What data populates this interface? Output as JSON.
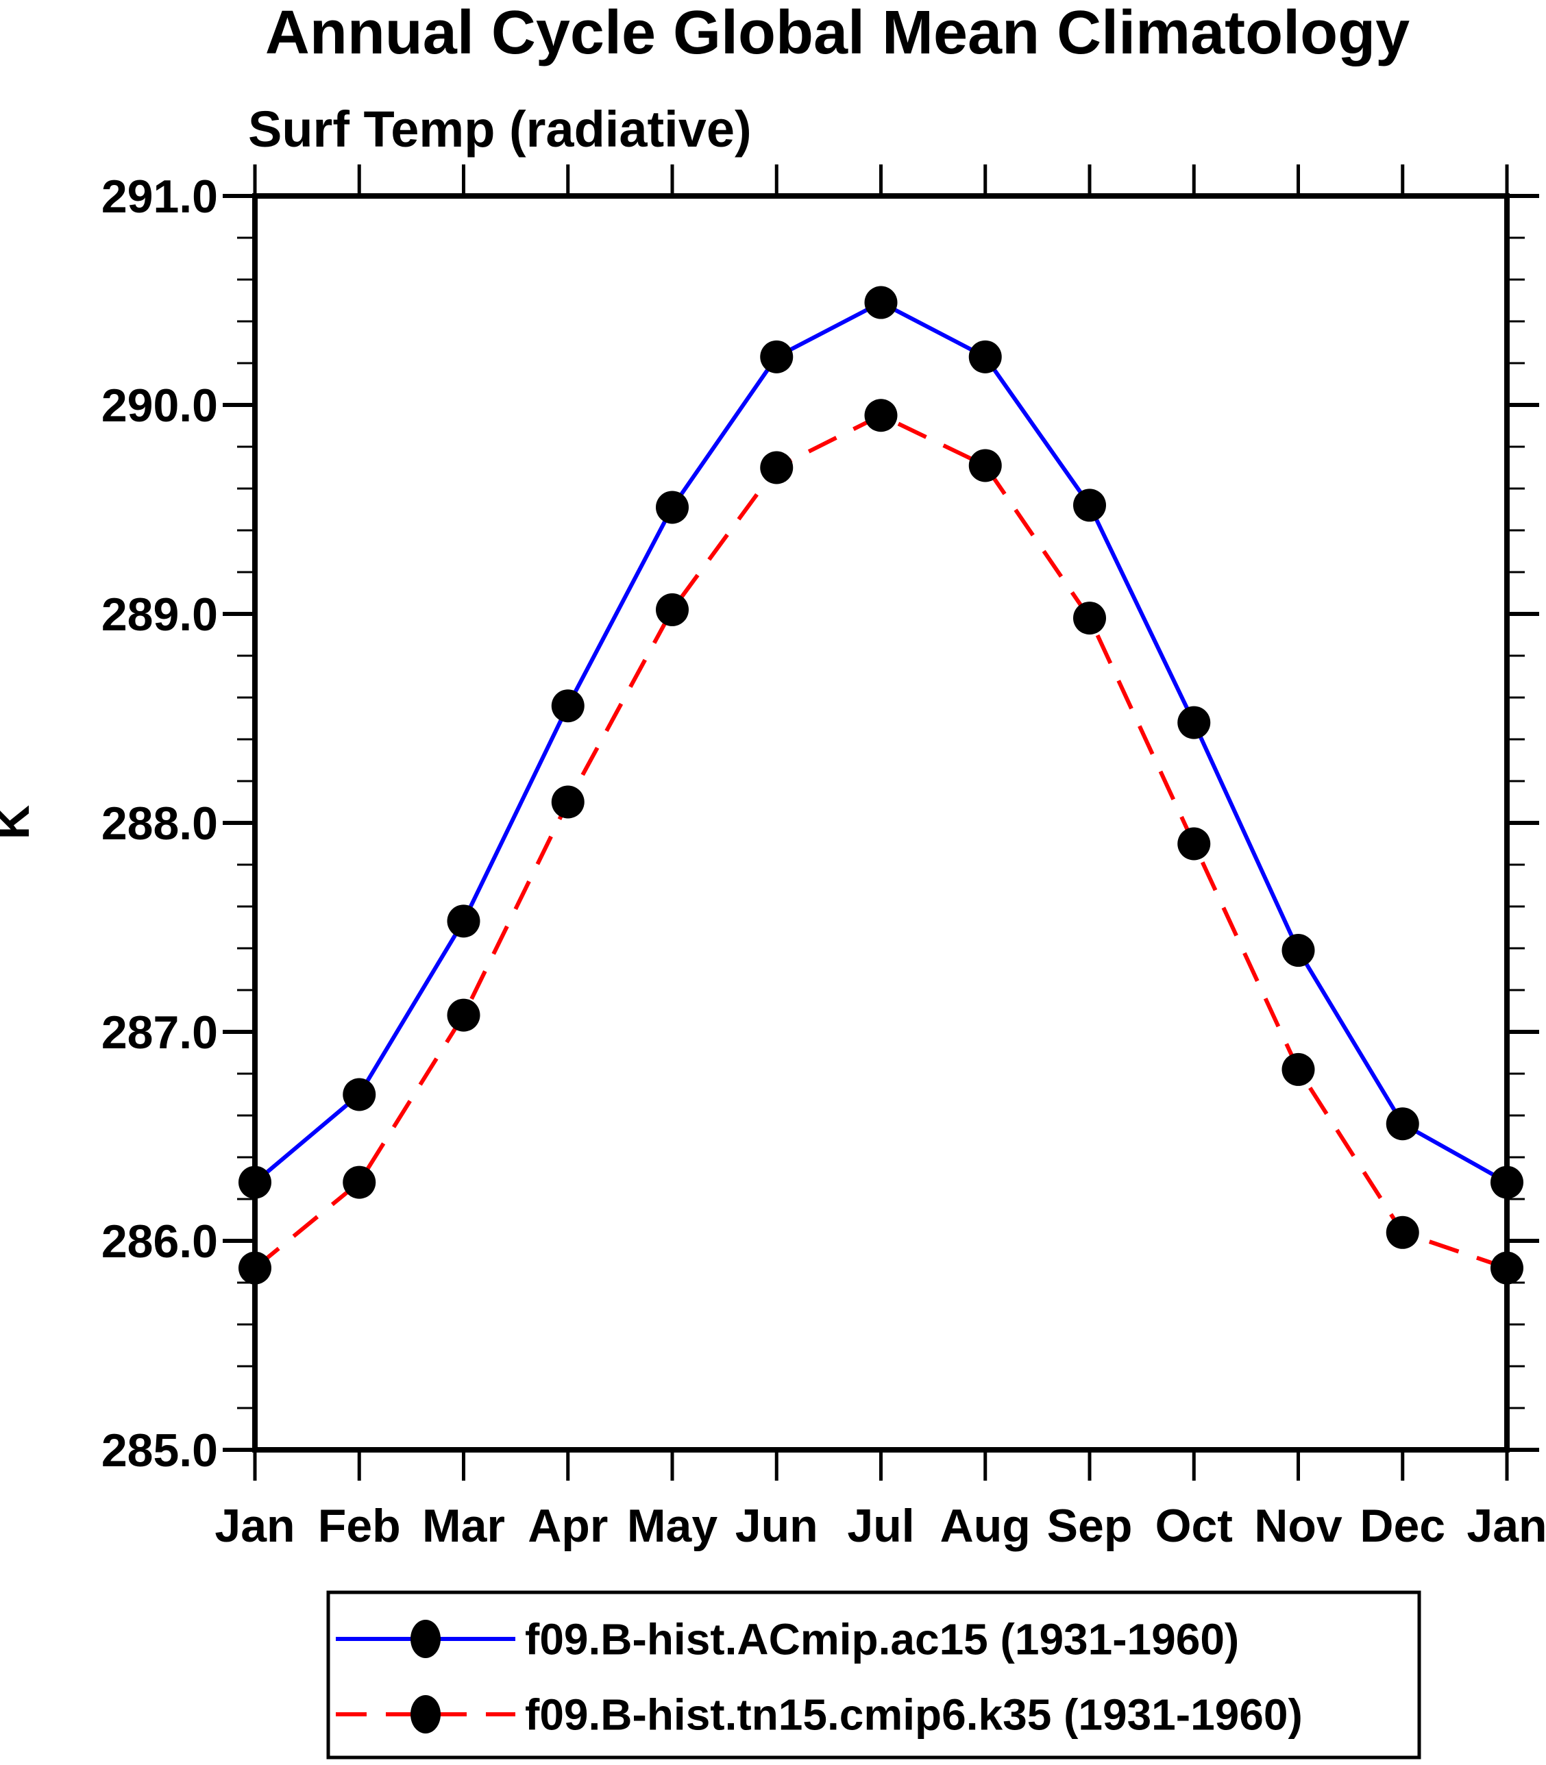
{
  "page": {
    "background": "#ffffff"
  },
  "chart_data": {
    "type": "line",
    "title": "Annual Cycle Global Mean Climatology",
    "subtitle": "Surf Temp (radiative)",
    "xlabel": "",
    "ylabel": "K",
    "categories": [
      "Jan",
      "Feb",
      "Mar",
      "Apr",
      "May",
      "Jun",
      "Jul",
      "Aug",
      "Sep",
      "Oct",
      "Nov",
      "Dec",
      "Jan"
    ],
    "ylim": [
      285.0,
      291.0
    ],
    "ytick_interval": 1.0,
    "ytick_minor_interval": 0.2,
    "ytick_labels": [
      "285.0",
      "286.0",
      "287.0",
      "288.0",
      "289.0",
      "290.0",
      "291.0"
    ],
    "grid": false,
    "axis_color": "#000000",
    "legend_position": "bottom",
    "series": [
      {
        "name": "f09.B-hist.ACmip.ac15 (1931-1960)",
        "color": "#0000ff",
        "line_style": "solid",
        "marker": "filled-circle",
        "marker_color": "#000000",
        "values": [
          286.28,
          286.7,
          287.53,
          288.56,
          289.51,
          290.23,
          290.49,
          290.23,
          289.52,
          288.48,
          287.39,
          286.56,
          286.28
        ]
      },
      {
        "name": "f09.B-hist.tn15.cmip6.k35 (1931-1960)",
        "color": "#ff0000",
        "line_style": "dashed",
        "marker": "filled-circle",
        "marker_color": "#000000",
        "values": [
          285.87,
          286.28,
          287.08,
          288.1,
          289.02,
          289.7,
          289.95,
          289.71,
          288.98,
          287.9,
          286.82,
          286.04,
          285.87
        ]
      }
    ]
  }
}
